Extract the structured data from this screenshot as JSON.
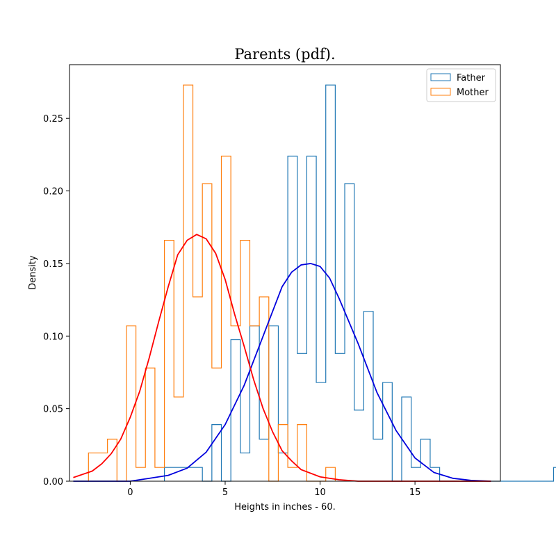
{
  "chart_data": {
    "type": "bar",
    "title": "Parents (pdf).",
    "xlabel": "Heights in inches - 60.",
    "ylabel": "Density",
    "xlim": [
      -3.2,
      19.5
    ],
    "ylim": [
      0,
      0.287
    ],
    "xticks": [
      0,
      5,
      10,
      15
    ],
    "yticks": [
      0.0,
      0.05,
      0.1,
      0.15,
      0.2,
      0.25
    ],
    "ytick_labels": [
      "0.00",
      "0.05",
      "0.10",
      "0.15",
      "0.20",
      "0.25"
    ],
    "grid": false,
    "legend_position": "top-right",
    "histograms": [
      {
        "name": "Father",
        "color": "#1f77b4",
        "start": 1.8,
        "bin_width": 0.5,
        "values": [
          0.0095,
          0.0095,
          0.0095,
          0.0095,
          0,
          0.039,
          0,
          0.0975,
          0.0195,
          0.107,
          0.029,
          0.107,
          0.0195,
          0.224,
          0.088,
          0.224,
          0.068,
          0.273,
          0.088,
          0.205,
          0.049,
          0.117,
          0.029,
          0.068,
          0,
          0.058,
          0.0095,
          0.029,
          0.0095,
          0,
          0,
          0,
          0,
          0,
          0,
          0,
          0,
          0,
          0,
          0,
          0,
          0.0095
        ]
      },
      {
        "name": "Mother",
        "color": "#ff7f0e",
        "start": -2.2,
        "bin_width": 0.5,
        "values": [
          0.0195,
          0.0195,
          0.029,
          0,
          0.107,
          0.0095,
          0.078,
          0.0095,
          0.166,
          0.058,
          0.273,
          0.127,
          0.205,
          0.078,
          0.224,
          0.107,
          0.166,
          0.107,
          0.127,
          0,
          0.039,
          0.0095,
          0.039,
          0,
          0,
          0.0095
        ]
      }
    ],
    "curves": [
      {
        "color": "#0000dd",
        "x": [
          -3,
          -2,
          -1,
          0,
          1,
          2,
          3,
          4,
          5,
          6,
          7,
          8,
          8.5,
          9,
          9.5,
          10,
          10.5,
          11,
          12,
          13,
          14,
          15,
          16,
          17,
          18,
          19
        ],
        "y": [
          0,
          0,
          0,
          0,
          0.002,
          0.004,
          0.009,
          0.02,
          0.039,
          0.066,
          0.1,
          0.134,
          0.144,
          0.149,
          0.15,
          0.148,
          0.14,
          0.126,
          0.095,
          0.061,
          0.035,
          0.016,
          0.006,
          0.002,
          0.0005,
          0
        ]
      },
      {
        "color": "#ff0000",
        "x": [
          -3,
          -2,
          -1.5,
          -1,
          -0.5,
          0,
          0.5,
          1,
          1.5,
          2,
          2.5,
          3,
          3.5,
          4,
          4.5,
          5,
          5.5,
          6,
          6.5,
          7,
          7.5,
          8,
          8.5,
          9,
          10,
          11,
          12,
          13,
          14,
          15,
          16,
          17,
          18,
          19
        ],
        "y": [
          0.0025,
          0.007,
          0.012,
          0.019,
          0.029,
          0.044,
          0.062,
          0.085,
          0.11,
          0.134,
          0.156,
          0.166,
          0.17,
          0.167,
          0.157,
          0.139,
          0.115,
          0.093,
          0.07,
          0.05,
          0.034,
          0.021,
          0.014,
          0.008,
          0.003,
          0.001,
          0,
          0,
          0,
          0,
          0,
          0,
          0,
          0
        ]
      }
    ]
  }
}
